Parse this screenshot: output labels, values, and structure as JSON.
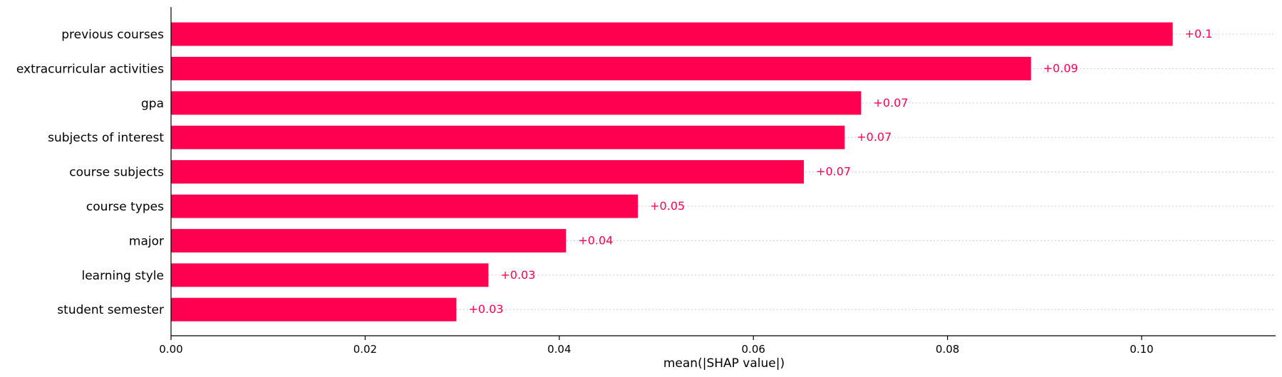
{
  "chart_data": {
    "type": "bar",
    "orientation": "horizontal",
    "categories": [
      "previous courses",
      "extracurricular activities",
      "gpa",
      "subjects of interest",
      "course subjects",
      "course types",
      "major",
      "learning style",
      "student semester"
    ],
    "values": [
      0.1032,
      0.0886,
      0.0711,
      0.0694,
      0.0652,
      0.0481,
      0.0407,
      0.0327,
      0.0294
    ],
    "value_labels": [
      "+0.1",
      "+0.09",
      "+0.07",
      "+0.07",
      "+0.07",
      "+0.05",
      "+0.04",
      "+0.03",
      "+0.03"
    ],
    "xlabel": "mean(|SHAP value|)",
    "ylabel": "",
    "xlim": [
      0,
      0.1138
    ],
    "xticks": [
      0.0,
      0.02,
      0.04,
      0.06,
      0.08,
      0.1
    ],
    "xtick_labels": [
      "0.00",
      "0.02",
      "0.04",
      "0.06",
      "0.08",
      "0.10"
    ],
    "bar_color": "#ff0051",
    "label_color": "#ff0051",
    "grid": "dotted horizontal lines per row",
    "legend": "none"
  }
}
